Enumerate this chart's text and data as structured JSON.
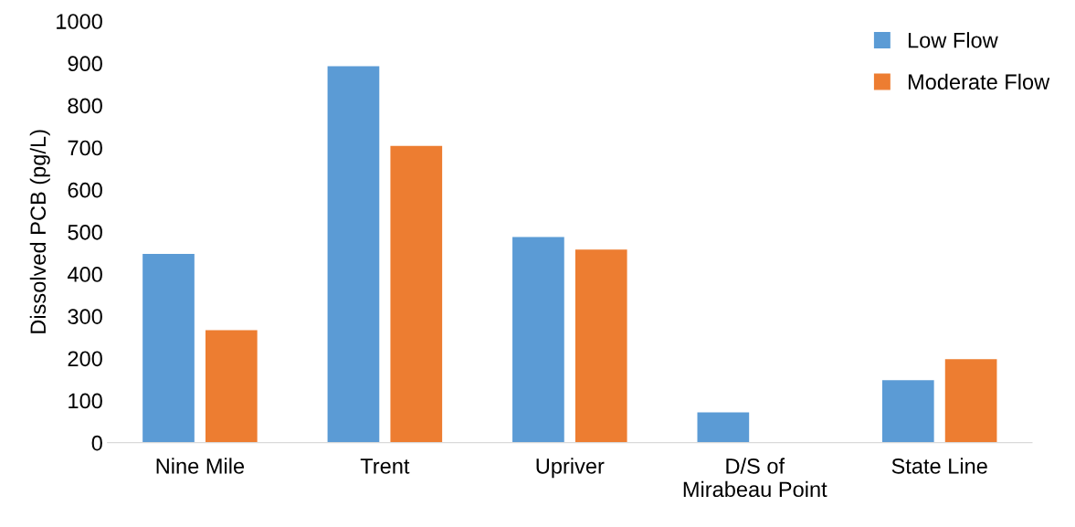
{
  "chart_data": {
    "type": "bar",
    "ylabel": "Dissolved PCB (pg/L)",
    "categories": [
      "Nine Mile",
      "Trent",
      "Upriver",
      "D/S of\nMirabeau Point",
      "State Line"
    ],
    "series": [
      {
        "name": "Low Flow",
        "color": "#5b9bd5",
        "values": [
          448,
          893,
          488,
          72,
          148
        ]
      },
      {
        "name": "Moderate Flow",
        "color": "#ed7d31",
        "values": [
          267,
          704,
          458,
          null,
          198
        ]
      }
    ],
    "ylim": [
      0,
      1000
    ],
    "yticks": [
      0,
      100,
      200,
      300,
      400,
      500,
      600,
      700,
      800,
      900,
      1000
    ],
    "grid": false,
    "legend": "top right"
  }
}
